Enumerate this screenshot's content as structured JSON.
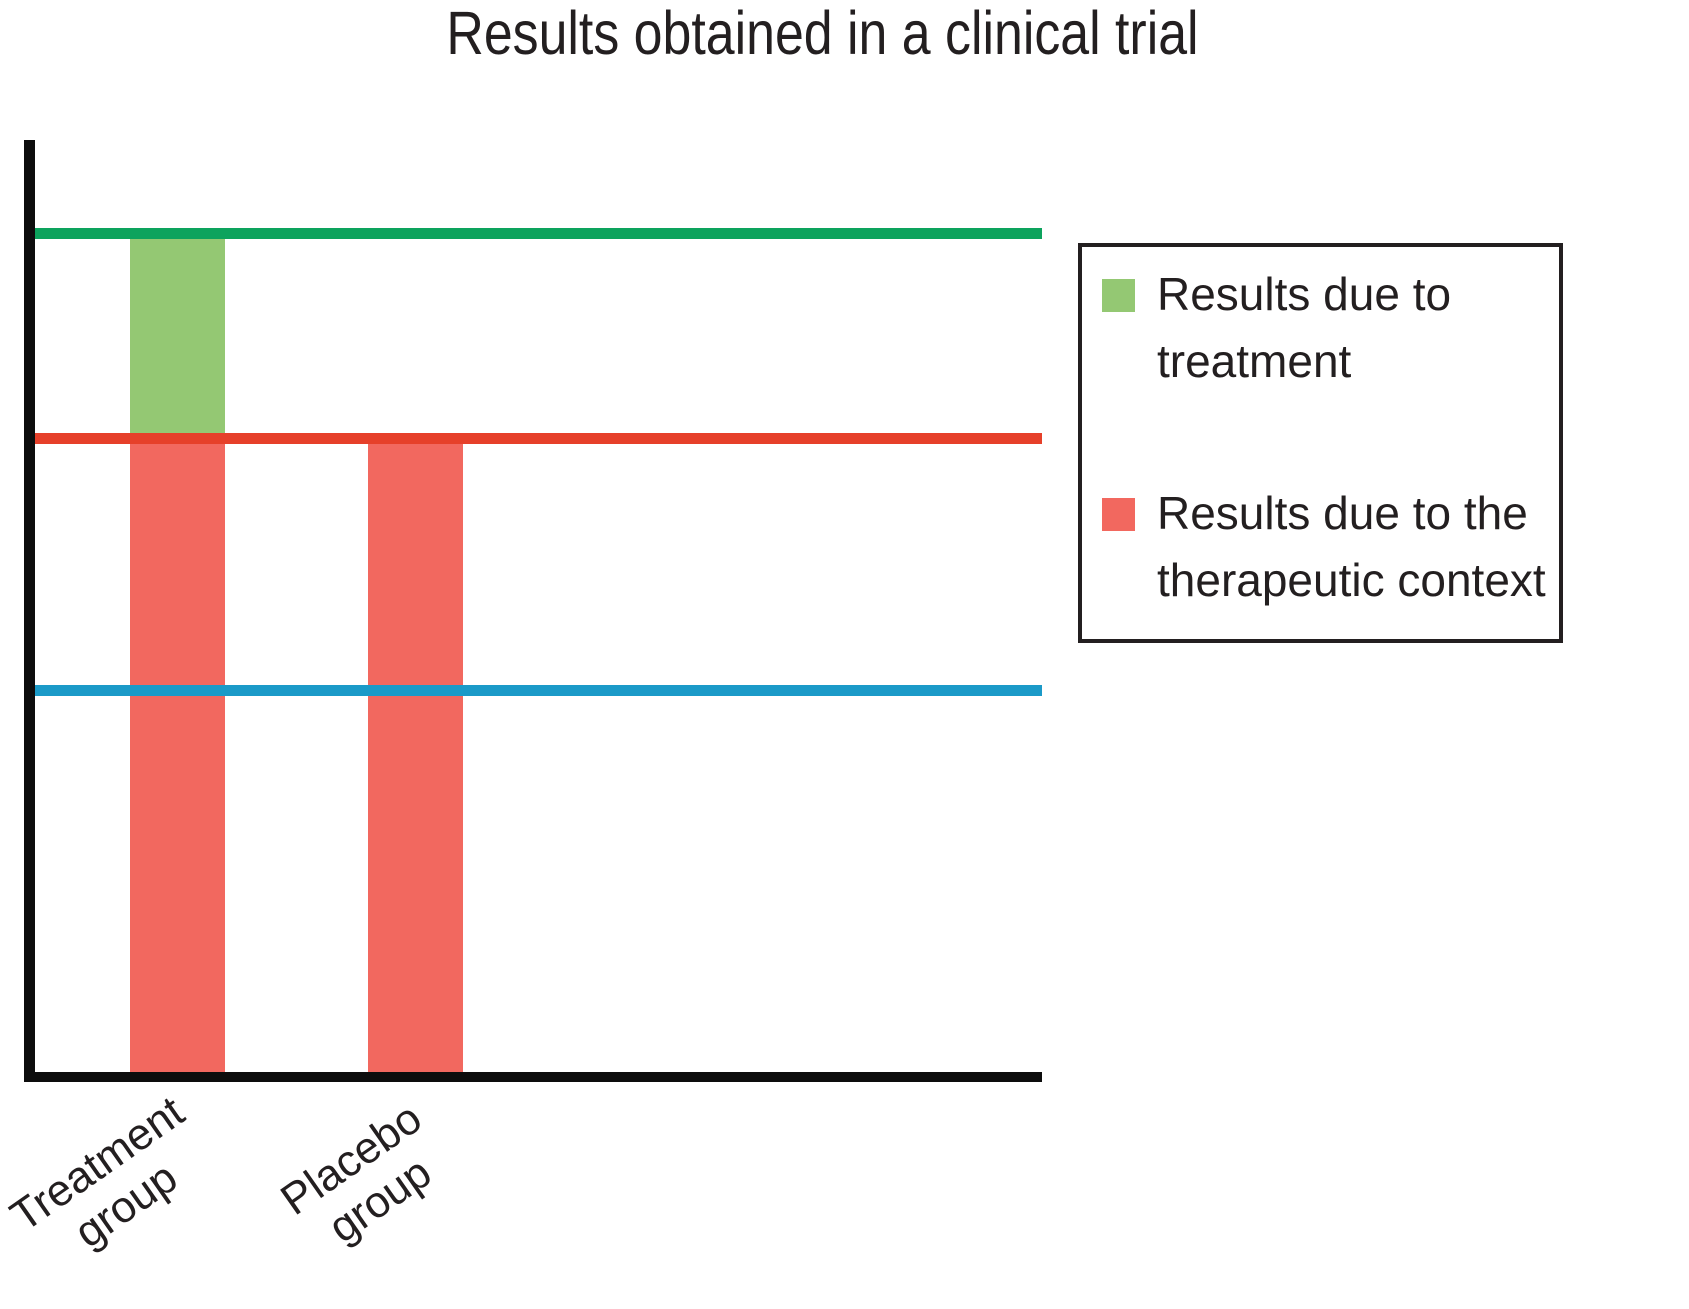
{
  "page": {
    "background": "#ffffff",
    "text_color": "#231f20"
  },
  "chart_data": {
    "type": "bar",
    "title": "Results obtained in a clinical trial",
    "categories": [
      "Treatment group",
      "Placebo group"
    ],
    "stacked_series": [
      {
        "name": "Results due to the therapeutic context",
        "color": "#f2685f",
        "values": [
          0.68,
          0.68
        ]
      },
      {
        "name": "Results due to treatment",
        "color": "#94c873",
        "values": [
          0.22,
          0.0
        ]
      }
    ],
    "reference_lines": [
      {
        "name": "treatment-total-level",
        "color": "#0da35d",
        "value": 0.9
      },
      {
        "name": "therapeutic-context-level",
        "color": "#e6402a",
        "value": 0.68
      },
      {
        "name": "lower-unlabeled-level",
        "color": "#1b9ac8",
        "value": 0.41
      }
    ],
    "ylim": [
      0,
      1.0
    ],
    "axes": {
      "color": "#0d0d0d",
      "ticks": "none",
      "gridlines": "off",
      "x_label_rotation_deg": -35
    },
    "legend": {
      "position": "right",
      "border_color": "#231f20",
      "items": [
        {
          "label": "Results due to\ntreatment",
          "color": "#94c873"
        },
        {
          "label": "Results due to the\ntherapeutic context",
          "color": "#f2685f"
        }
      ]
    }
  }
}
